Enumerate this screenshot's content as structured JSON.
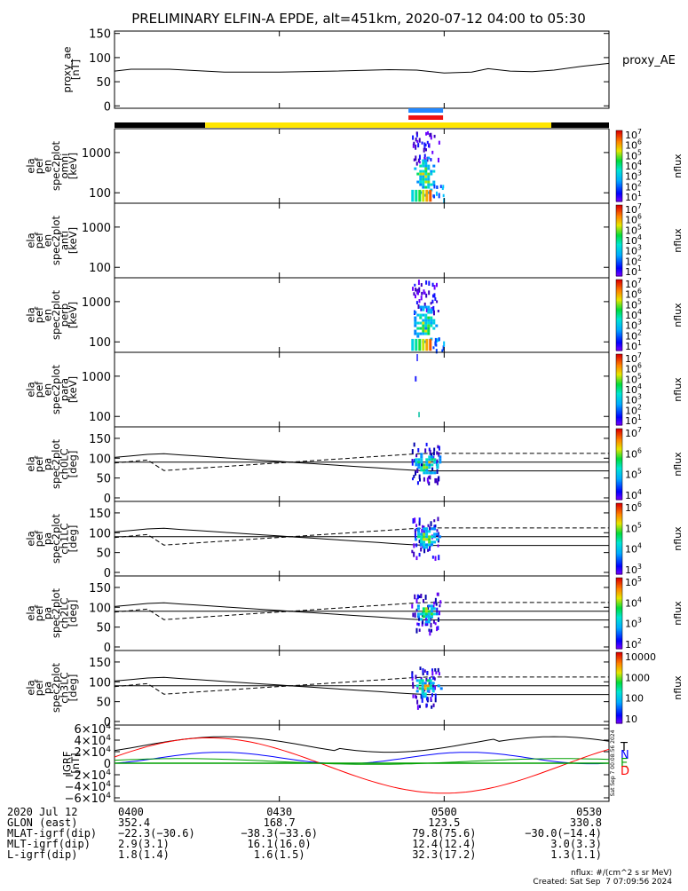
{
  "title": "PRELIMINARY ELFIN-A EPDE, alt=451km, 2020-07-12 04:00 to 05:30",
  "time_range": [
    "04:00",
    "05:30"
  ],
  "chart_data": [
    {
      "type": "line",
      "panel": "proxy_ae",
      "ylabel": [
        "proxy_ae",
        "[nT]"
      ],
      "legend": "proxy_AE",
      "ylim": [
        -5,
        155
      ],
      "yticks": [
        "0",
        "50",
        "100",
        "150"
      ],
      "ytick_values": [
        0,
        50,
        100,
        150
      ],
      "x_minutes": [
        0,
        3,
        10,
        20,
        30,
        40,
        50,
        55,
        60,
        65,
        68,
        72,
        76,
        80,
        85,
        90
      ],
      "values": [
        72,
        76,
        76,
        70,
        70,
        72,
        75,
        74,
        68,
        70,
        77,
        72,
        71,
        74,
        82,
        88
      ]
    },
    {
      "type": "heatmap",
      "panel": "spec2plot_omni",
      "ylabel": [
        "ela",
        "pef",
        "en",
        "spec2plot",
        "omni",
        "[keV]"
      ],
      "yticks": [
        "1000",
        "100"
      ],
      "colorbar_ticks": [
        "10^7",
        "10^6",
        "10^5",
        "10^4",
        "10^3",
        "10^2",
        "10^1"
      ],
      "colorbar_label": "nflux"
    },
    {
      "type": "heatmap",
      "panel": "spec2plot_anti",
      "ylabel": [
        "ela",
        "pef",
        "en",
        "spec2plot",
        "anti",
        "[keV]"
      ],
      "yticks": [
        "1000",
        "100"
      ],
      "colorbar_ticks": [
        "10^7",
        "10^6",
        "10^5",
        "10^4",
        "10^3",
        "10^2",
        "10^1"
      ],
      "colorbar_label": "nflux"
    },
    {
      "type": "heatmap",
      "panel": "spec2plot_perp",
      "ylabel": [
        "ela",
        "pef",
        "en",
        "spec2plot",
        "perp",
        "[keV]"
      ],
      "yticks": [
        "1000",
        "100"
      ],
      "colorbar_ticks": [
        "10^7",
        "10^6",
        "10^5",
        "10^4",
        "10^3",
        "10^2",
        "10^1"
      ],
      "colorbar_label": "nflux"
    },
    {
      "type": "heatmap",
      "panel": "spec2plot_para",
      "ylabel": [
        "ela",
        "pef",
        "en",
        "spec2plot",
        "para",
        "[keV]"
      ],
      "yticks": [
        "1000",
        "100"
      ],
      "colorbar_ticks": [
        "10^7",
        "10^6",
        "10^5",
        "10^4",
        "10^3",
        "10^2",
        "10^1"
      ],
      "colorbar_label": "nflux"
    },
    {
      "type": "heatmap",
      "panel": "spec2plot_ch0LC",
      "ylabel": [
        "ela",
        "pef",
        "pa",
        "spec2plot",
        "ch0LC",
        "[deg]"
      ],
      "yticks": [
        "150",
        "100",
        "50",
        "0"
      ],
      "colorbar_ticks": [
        "10^7",
        "10^6",
        "10^5",
        "10^4"
      ],
      "colorbar_label": "nflux"
    },
    {
      "type": "heatmap",
      "panel": "spec2plot_ch1LC",
      "ylabel": [
        "ela",
        "pef",
        "pa",
        "spec2plot",
        "ch1LC",
        "[deg]"
      ],
      "yticks": [
        "150",
        "100",
        "50",
        "0"
      ],
      "colorbar_ticks": [
        "10^6",
        "10^5",
        "10^4",
        "10^3"
      ],
      "colorbar_label": "nflux"
    },
    {
      "type": "heatmap",
      "panel": "spec2plot_ch2LC",
      "ylabel": [
        "ela",
        "pef",
        "pa",
        "spec2plot",
        "ch2LC",
        "[deg]"
      ],
      "yticks": [
        "150",
        "100",
        "50",
        "0"
      ],
      "colorbar_ticks": [
        "10^5",
        "10^4",
        "10^3",
        "10^2"
      ],
      "colorbar_label": "nflux"
    },
    {
      "type": "heatmap",
      "panel": "spec2plot_ch3LC",
      "ylabel": [
        "ela",
        "pef",
        "pa",
        "spec2plot",
        "ch3LC",
        "[deg]"
      ],
      "yticks": [
        "150",
        "100",
        "50",
        "0"
      ],
      "colorbar_ticks": [
        "10000",
        "1000",
        "100",
        "10"
      ],
      "colorbar_label": "nflux"
    },
    {
      "type": "line",
      "panel": "IGRF",
      "ylabel": [
        "IGRF",
        "[nT]"
      ],
      "ylim": [
        -6,
        6
      ],
      "yticks": [
        "6×10^4",
        "4×10^4",
        "2×10^4",
        "0",
        "−2×10^4",
        "−4×10^4",
        "−6×10^4"
      ],
      "ytick_values": [
        6,
        4,
        2,
        0,
        -2,
        -4,
        -6
      ],
      "series": [
        {
          "name": "T",
          "color": "#000000"
        },
        {
          "name": "N",
          "color": "#0000ff"
        },
        {
          "name": "E",
          "color": "#00a000"
        },
        {
          "name": "D",
          "color": "#ff0000"
        }
      ],
      "side_text": "Sat Sep  7 00:08:56 2024"
    }
  ],
  "bottom": {
    "rows": [
      {
        "label": "2020 Jul 12",
        "values": [
          "0400",
          "0430",
          "0500",
          "0530"
        ]
      },
      {
        "label": "GLON (east)",
        "values": [
          "352.4",
          "168.7",
          "123.5",
          "330.8"
        ]
      },
      {
        "label": "MLAT-igrf(dip)",
        "values": [
          "−22.3(−30.6)",
          "−38.3(−33.6)",
          "79.8(75.6)",
          "−30.0(−14.4)"
        ]
      },
      {
        "label": "MLT-igrf(dip)",
        "values": [
          "2.9(3.1)",
          "16.1(16.0)",
          "12.4(12.4)",
          "3.0(3.3)"
        ]
      },
      {
        "label": "L-igrf(dip)",
        "values": [
          "1.8(1.4)",
          "1.6(1.5)",
          "32.3(17.2)",
          "1.3(1.1)"
        ]
      }
    ],
    "units_note": "nflux: #/(cm^2 s sr MeV)",
    "created": "Created: Sat Sep  7 07:09:56 2024"
  },
  "colors": {
    "bar_yellow": "#ffe600",
    "bar_black": "#000000",
    "bar_blue": "#2288ff",
    "bar_red": "#ee1111"
  }
}
